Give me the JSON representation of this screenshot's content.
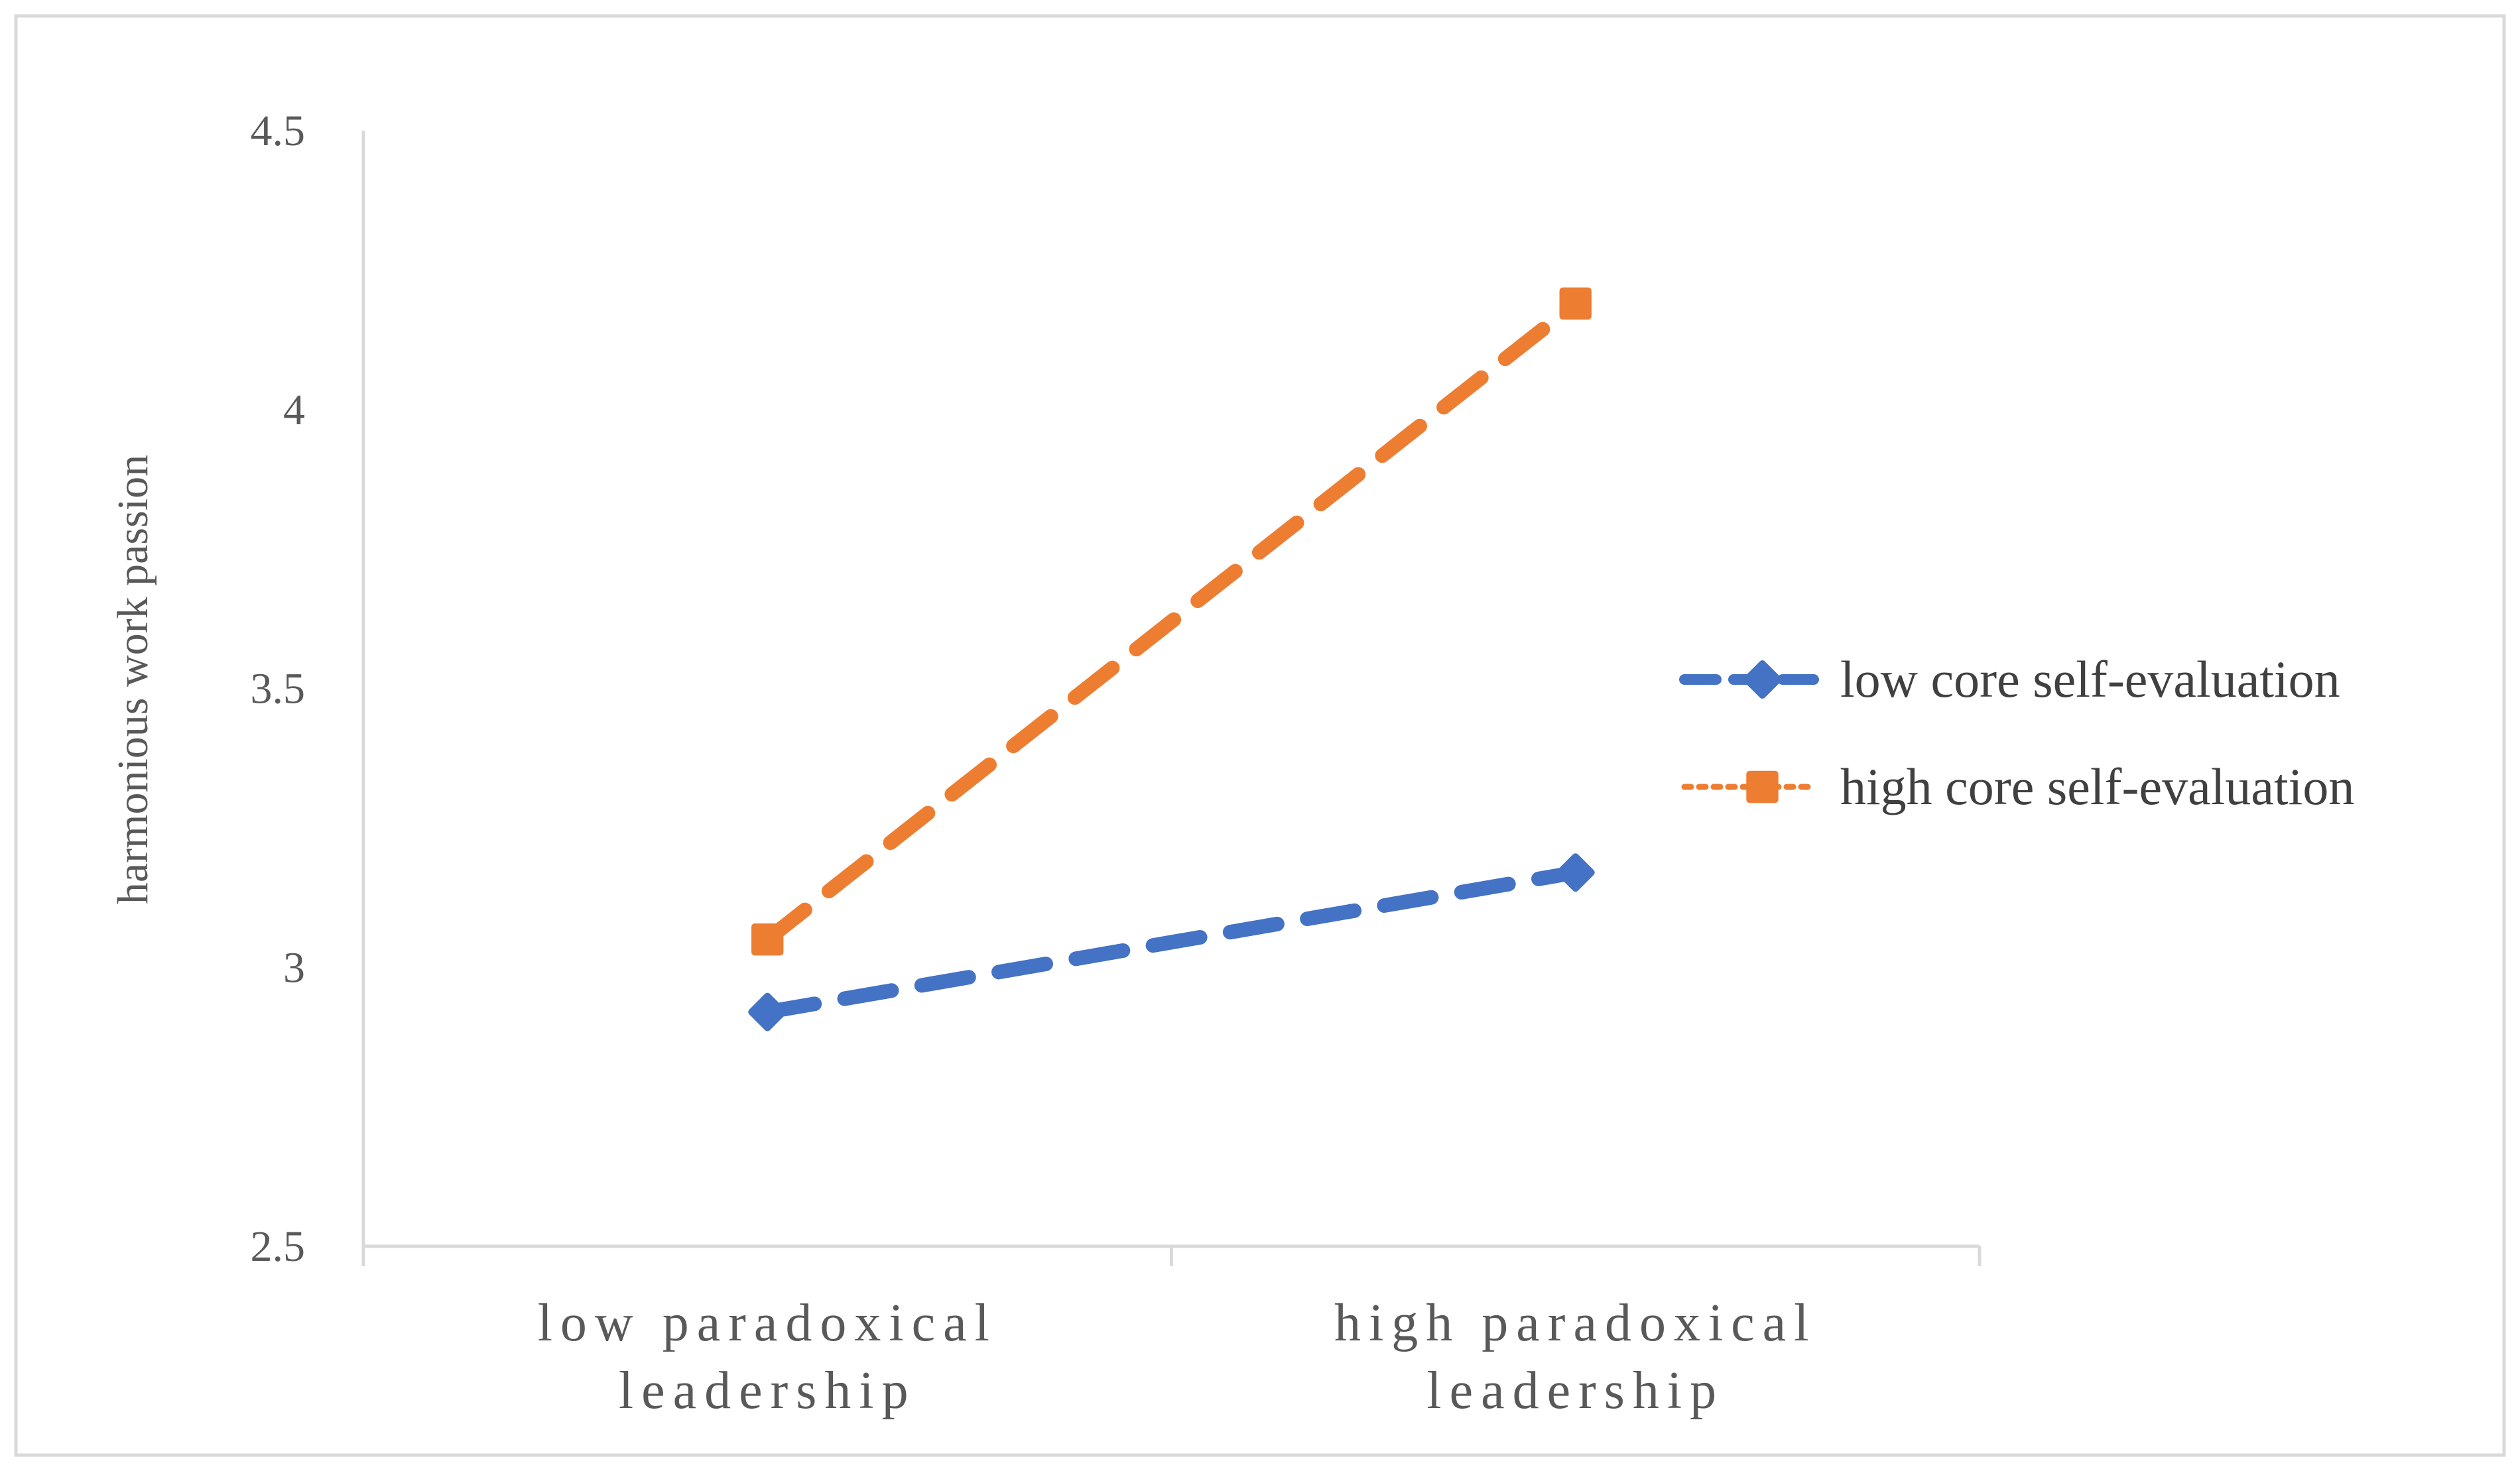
{
  "chart_data": {
    "type": "line",
    "title": "",
    "xlabel": "",
    "ylabel": "harmonious work passion",
    "categories": [
      [
        "low paradoxical",
        "leadership"
      ],
      [
        "high paradoxical",
        "leadership"
      ]
    ],
    "ylim": [
      2.5,
      4.5
    ],
    "yticks": [
      "2.5",
      "3",
      "3.5",
      "4",
      "4.5"
    ],
    "grid": false,
    "legend_position": "right",
    "series": [
      {
        "name": "low core self-evaluation",
        "values": [
          2.92,
          3.17
        ],
        "color": "#4472C4",
        "marker": "diamond"
      },
      {
        "name": "high core self-evaluation",
        "values": [
          3.05,
          4.19
        ],
        "color": "#ED7D31",
        "marker": "square"
      }
    ]
  }
}
